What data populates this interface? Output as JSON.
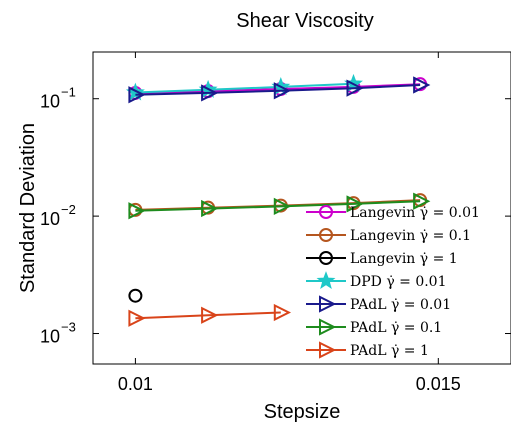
{
  "chart_data": {
    "type": "line",
    "title": "Shear Viscosity",
    "xlabel": "Stepsize",
    "ylabel": "Standard Deviation",
    "yscale": "log",
    "xlim": [
      0.0093,
      0.0162
    ],
    "ylim": [
      0.00055,
      0.25
    ],
    "xticks": [
      {
        "value": 0.01,
        "label": "0.01"
      },
      {
        "value": 0.015,
        "label": "0.015"
      }
    ],
    "yticks": [
      {
        "value": 0.001,
        "base": "10",
        "exp": "−3"
      },
      {
        "value": 0.01,
        "base": "10",
        "exp": "−2"
      },
      {
        "value": 0.1,
        "base": "10",
        "exp": "−1"
      }
    ],
    "grid": false,
    "legend_position": "bottom-right",
    "series": [
      {
        "name": "Langevin γ̇ = 0.01",
        "color": "#cc00cc",
        "marker": "circle",
        "x": [
          0.01,
          0.0112,
          0.0124,
          0.0136,
          0.0147
        ],
        "y": [
          0.112,
          0.116,
          0.121,
          0.126,
          0.133
        ]
      },
      {
        "name": "Langevin γ̇ = 0.1",
        "color": "#b5561f",
        "marker": "circle",
        "x": [
          0.01,
          0.0112,
          0.0124,
          0.0136,
          0.0147
        ],
        "y": [
          0.0113,
          0.0118,
          0.0123,
          0.0129,
          0.0137
        ]
      },
      {
        "name": "Langevin γ̇ = 1",
        "color": "#000000",
        "marker": "circle",
        "x": [
          0.01
        ],
        "y": [
          0.0021
        ]
      },
      {
        "name": "DPD γ̇ = 0.01",
        "color": "#1fc8c8",
        "marker": "star",
        "x": [
          0.01,
          0.0112,
          0.0124,
          0.0136
        ],
        "y": [
          0.113,
          0.119,
          0.126,
          0.134
        ]
      },
      {
        "name": "PAdL γ̇ = 0.01",
        "color": "#1a1a8c",
        "marker": "triangle-right",
        "x": [
          0.01,
          0.0112,
          0.0124,
          0.0136,
          0.0147
        ],
        "y": [
          0.108,
          0.112,
          0.117,
          0.123,
          0.131
        ]
      },
      {
        "name": "PAdL γ̇ = 0.1",
        "color": "#1e8c1e",
        "marker": "triangle-right",
        "x": [
          0.01,
          0.0112,
          0.0124,
          0.0136,
          0.0147
        ],
        "y": [
          0.0111,
          0.0116,
          0.0121,
          0.0127,
          0.0134
        ]
      },
      {
        "name": "PAdL γ̇ = 1",
        "color": "#d9441a",
        "marker": "triangle-right",
        "x": [
          0.01,
          0.0112,
          0.0124
        ],
        "y": [
          0.00135,
          0.00143,
          0.00151
        ]
      }
    ]
  }
}
